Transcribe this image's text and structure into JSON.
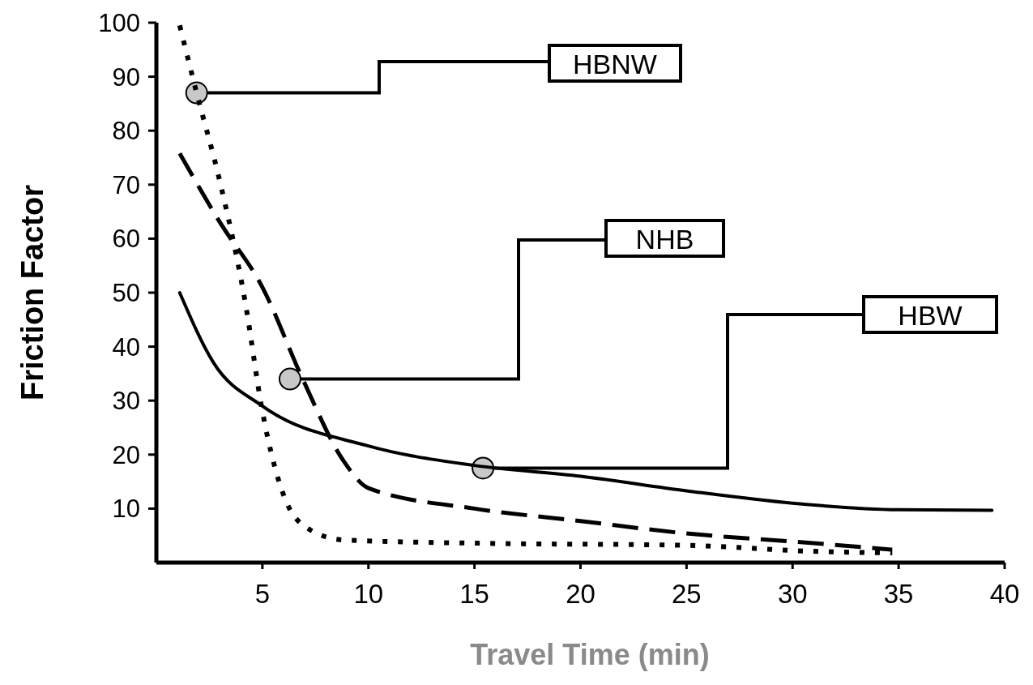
{
  "chart_data": {
    "type": "line",
    "xlabel": "Travel Time (min)",
    "ylabel": "Friction Factor",
    "xlim": [
      0,
      40
    ],
    "ylim": [
      0,
      100
    ],
    "xticks": [
      5,
      10,
      15,
      20,
      25,
      30,
      35,
      40
    ],
    "yticks": [
      10,
      20,
      30,
      40,
      50,
      60,
      70,
      80,
      90,
      100
    ],
    "grid": false,
    "series": [
      {
        "color": "#000000",
        "line_style": "dotted",
        "x": [
          1.1,
          1.9,
          3,
          4.2,
          5,
          6.1,
          7.2,
          8.8,
          15,
          25,
          30.9,
          34.7
        ],
        "values": [
          99.5,
          87,
          70.5,
          48,
          28,
          11.5,
          6.2,
          4.2,
          3.6,
          3.2,
          2.1,
          1.8
        ]
      },
      {
        "color": "#000000",
        "line_style": "dashed",
        "x": [
          1.1,
          3,
          5,
          6.9,
          8.8,
          10,
          15,
          20,
          25,
          30,
          34.7
        ],
        "values": [
          75.8,
          63,
          51,
          34,
          19,
          13.8,
          10,
          7.7,
          5.4,
          3.9,
          2.4
        ]
      },
      {
        "color": "#000000",
        "line_style": "solid",
        "x": [
          1.1,
          2.7,
          5,
          10,
          15,
          20,
          25,
          30,
          35,
          39.4
        ],
        "values": [
          50,
          37,
          29,
          21.6,
          18,
          16,
          13.3,
          11,
          9.8,
          9.7
        ]
      }
    ],
    "annotations": [
      {
        "text": "HBNW",
        "x": 1.9,
        "y": 87
      },
      {
        "text": "NHB",
        "x": 6.3,
        "y": 34
      },
      {
        "text": "HBW",
        "x": 15.4,
        "y": 17.5
      }
    ]
  }
}
